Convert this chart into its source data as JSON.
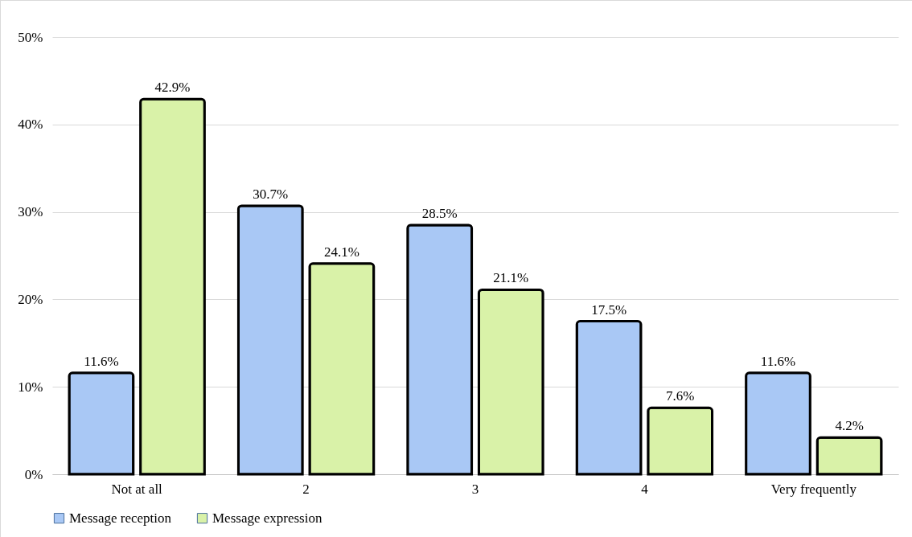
{
  "chart_data": {
    "type": "bar",
    "categories": [
      "Not at all",
      "2",
      "3",
      "4",
      "Very frequently"
    ],
    "series": [
      {
        "name": "Message reception",
        "color": "#a9c8f5",
        "values": [
          11.6,
          30.7,
          28.5,
          17.5,
          11.6
        ],
        "value_labels": [
          "11.6%",
          "30.7%",
          "28.5%",
          "17.5%",
          "11.6%"
        ]
      },
      {
        "name": "Message expression",
        "color": "#d9f2a8",
        "values": [
          42.9,
          24.1,
          21.1,
          7.6,
          4.2
        ],
        "value_labels": [
          "42.9%",
          "24.1%",
          "21.1%",
          "7.6%",
          "4.2%"
        ]
      }
    ],
    "ylim": [
      0,
      50
    ],
    "yticks": [
      {
        "value": 0,
        "label": "0%"
      },
      {
        "value": 10,
        "label": "10%"
      },
      {
        "value": 20,
        "label": "20%"
      },
      {
        "value": 30,
        "label": "30%"
      },
      {
        "value": 40,
        "label": "40%"
      },
      {
        "value": 50,
        "label": "50%"
      }
    ],
    "grid": "y",
    "legend": "bottom"
  }
}
